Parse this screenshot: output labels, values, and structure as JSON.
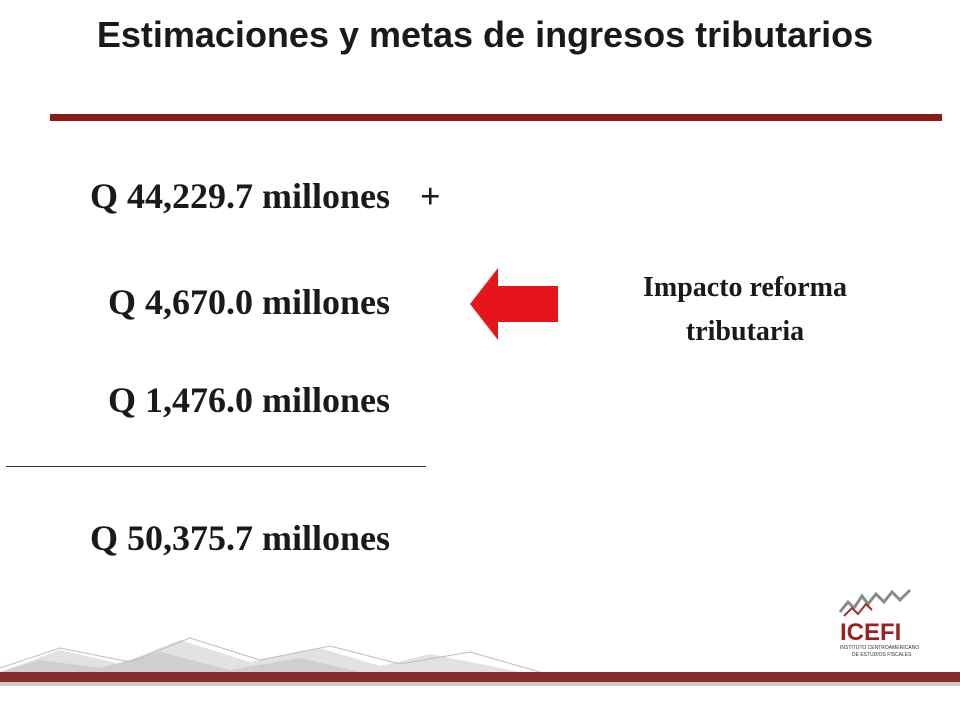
{
  "title": "Estimaciones y metas de ingresos tributarios",
  "amounts": [
    "Q 44,229.7 millones",
    "Q 4,670.0 millones",
    "Q 1,476.0 millones"
  ],
  "plus_sign": "+",
  "total": "Q 50,375.7 millones",
  "note": {
    "line1": "Impacto reforma",
    "line2": "tributaria"
  },
  "logo": {
    "name": "ICEFI",
    "subtitle_line1": "INSTITUTO CENTROAMERICANO",
    "subtitle_line2": "DE ESTUDIOS FISCALES"
  },
  "colors": {
    "accent": "#8b1a1a",
    "arrow": "#e8141c"
  }
}
